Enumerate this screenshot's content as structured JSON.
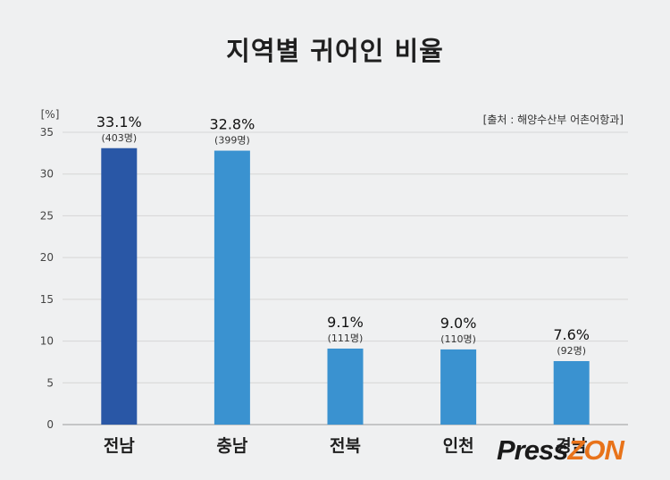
{
  "chart_data": {
    "type": "bar",
    "title": "지역별 귀어인 비율",
    "unit_label": "[%]",
    "source": "[출처 : 해양수산부 어촌어항과]",
    "ylim": [
      0,
      35
    ],
    "yticks": [
      "0",
      "5",
      "10",
      "15",
      "20",
      "25",
      "30",
      "35"
    ],
    "categories": [
      "전남",
      "충남",
      "전북",
      "인천",
      "경남"
    ],
    "values": [
      33.1,
      32.8,
      9.1,
      9.0,
      7.6
    ],
    "value_labels": [
      "33.1%",
      "32.8%",
      "9.1%",
      "9.0%",
      "7.6%"
    ],
    "count_labels": [
      "(403명)",
      "(399명)",
      "(111명)",
      "(110명)",
      "(92명)"
    ],
    "bar_colors": [
      "#2957a6",
      "#3a92d0",
      "#3a92d0",
      "#3a92d0",
      "#3a92d0"
    ],
    "grid": true
  },
  "logo": {
    "part1": "Press",
    "part2": "ZON"
  }
}
